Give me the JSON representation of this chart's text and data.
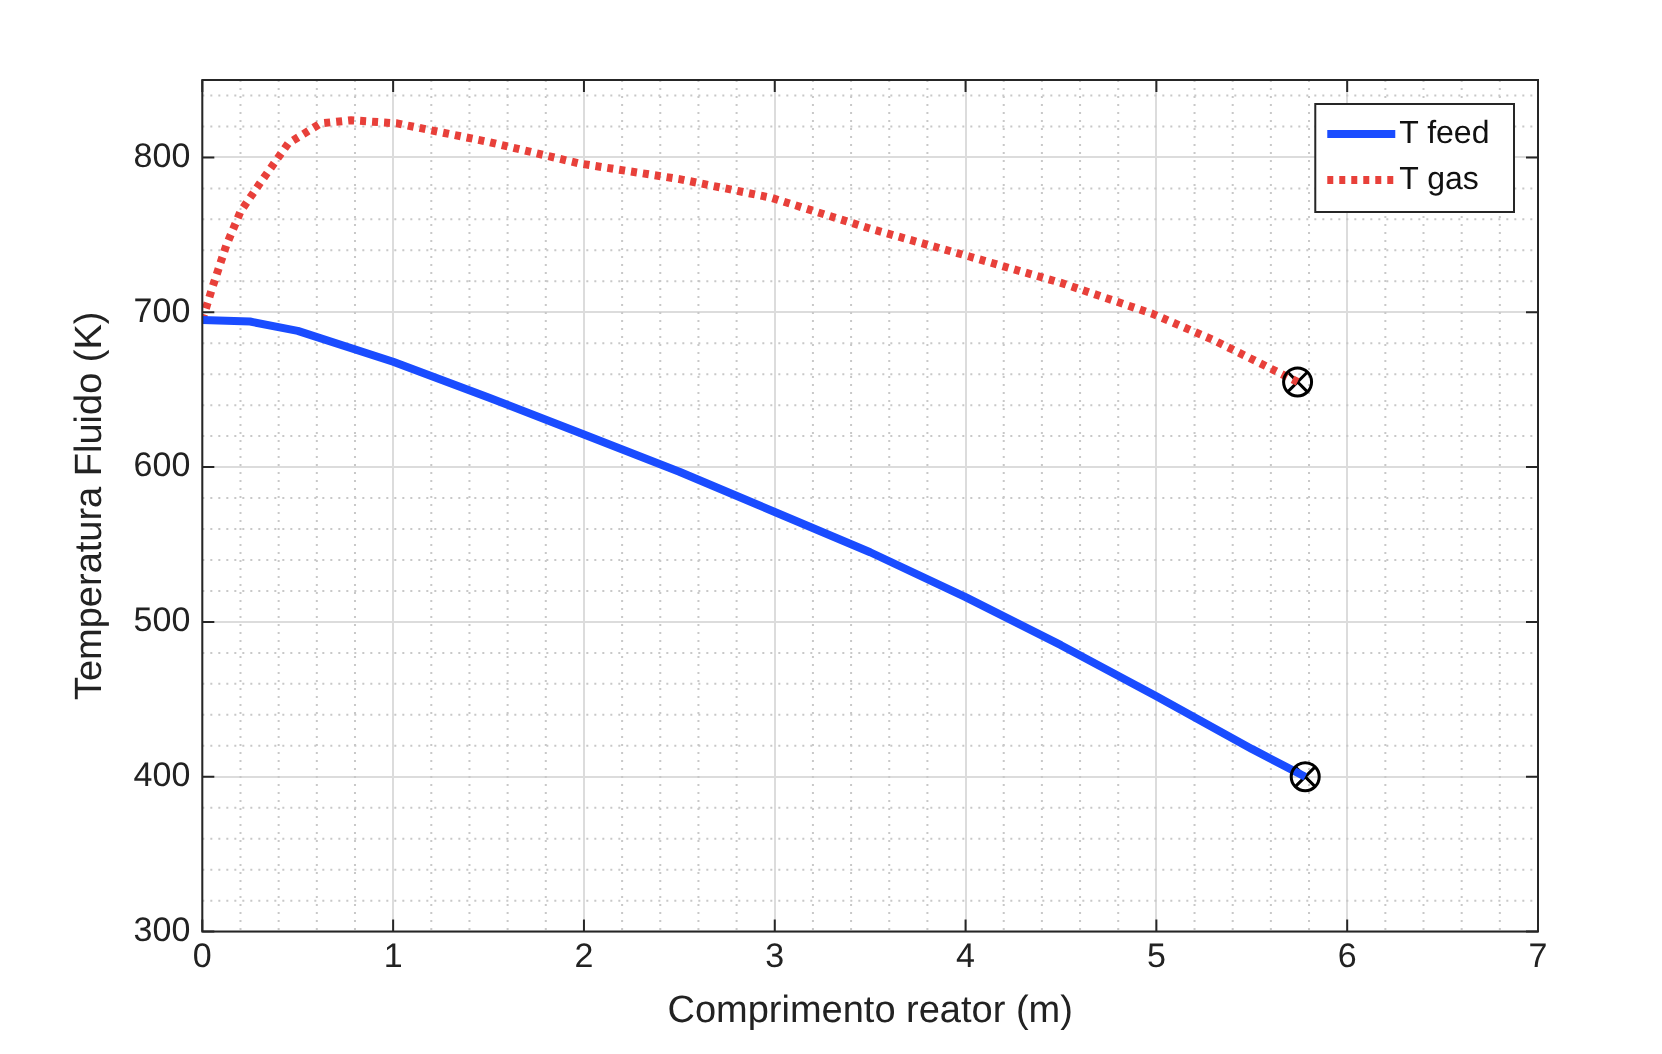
{
  "chart_data": {
    "type": "line",
    "xlabel": "Comprimento reator (m)",
    "ylabel": "Temperatura Fluido (K)",
    "xlim": [
      0,
      7
    ],
    "xticks": [
      0,
      1,
      2,
      3,
      4,
      5,
      6,
      7
    ],
    "ylim": [
      300,
      850
    ],
    "yticks": [
      300,
      400,
      500,
      600,
      700,
      800
    ],
    "grid": true,
    "legend": "top right",
    "marker": "none",
    "series": [
      {
        "name": "T feed",
        "color": "#1a4cff",
        "line_style": "solid",
        "x": [
          0,
          0.25,
          0.5,
          1,
          1.5,
          2,
          2.5,
          3,
          3.5,
          4,
          4.5,
          5,
          5.5,
          5.78
        ],
        "values": [
          695,
          694,
          688,
          668,
          645,
          621,
          597,
          571,
          545,
          516,
          485,
          452,
          418,
          400
        ]
      },
      {
        "name": "T gas",
        "color": "#e8403a",
        "line_style": "dotted",
        "x": [
          0,
          0.05,
          0.125,
          0.2,
          0.3,
          0.45,
          0.62,
          0.78,
          1.02,
          1.5,
          1.98,
          2.5,
          2.98,
          3.5,
          4.02,
          4.5,
          4.98,
          5.3,
          5.74
        ],
        "values": [
          695,
          715,
          743,
          765,
          783,
          809,
          822,
          824,
          822,
          810,
          796,
          786,
          774,
          754,
          736,
          719,
          699,
          682,
          655
        ]
      },
      {
        "type": "scatter",
        "color": "#000000",
        "marker": "cross",
        "x": [
          5.74,
          5.78
        ],
        "values": [
          655,
          400
        ]
      }
    ]
  }
}
